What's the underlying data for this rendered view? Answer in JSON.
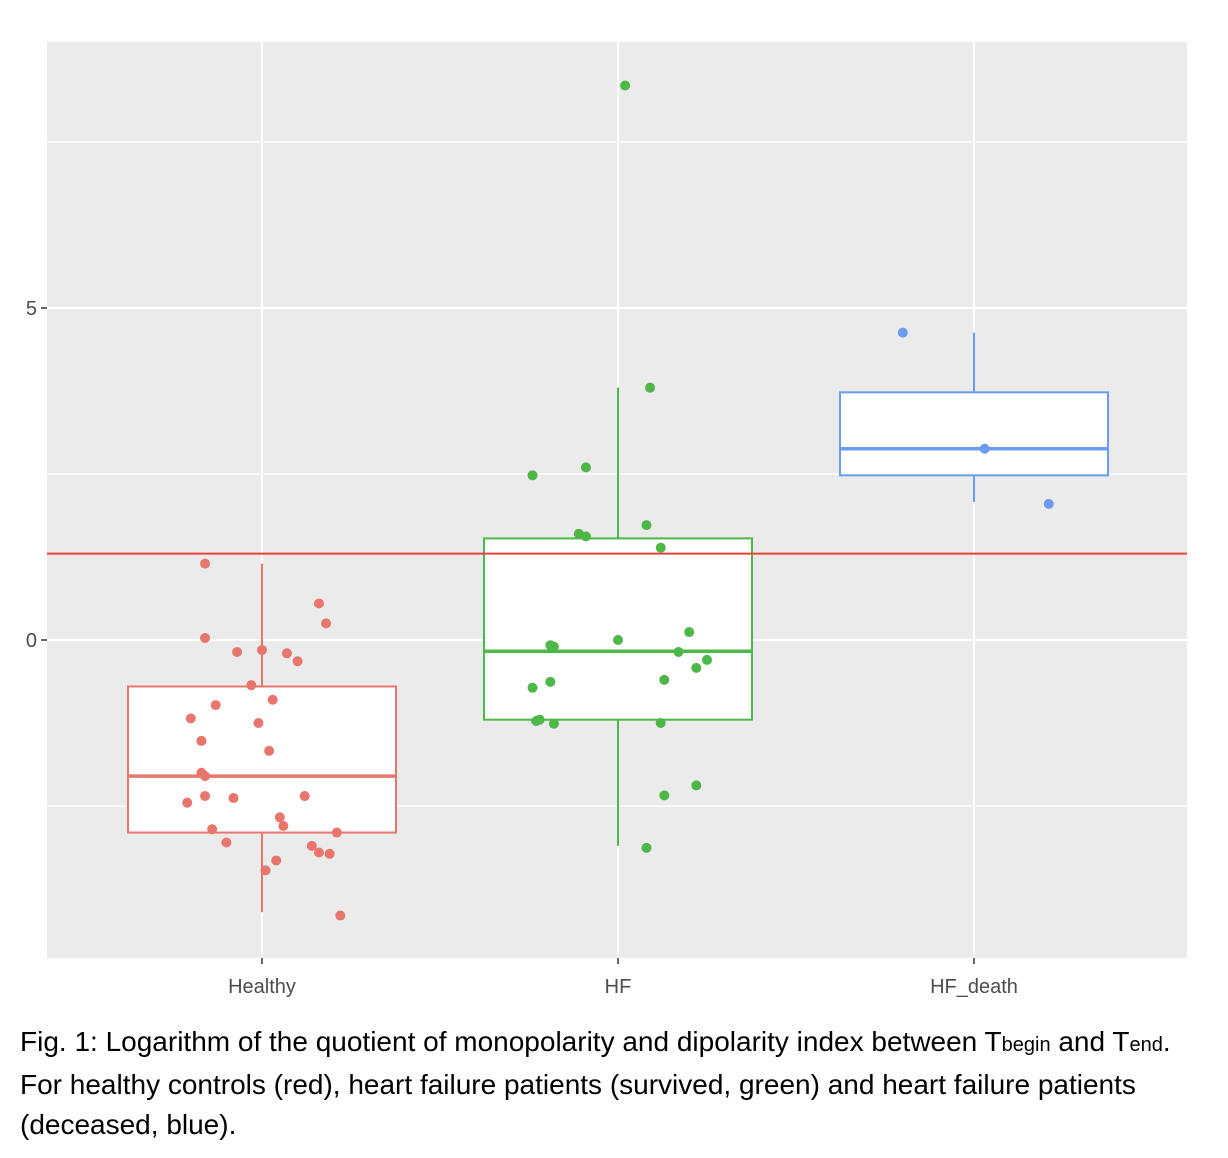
{
  "chart_data": {
    "type": "boxplot",
    "categories": [
      "Healthy",
      "HF",
      "HF_death"
    ],
    "y_ticks": [
      0,
      5
    ],
    "ylim": [
      -4.8,
      8.95
    ],
    "grid": true,
    "reference_line": {
      "y": 1.3,
      "color": "#E8423A"
    },
    "colors": {
      "Healthy": "#E8766D",
      "HF": "#4DB748",
      "HF_death": "#6C9BF2"
    },
    "boxes": [
      {
        "category": "Healthy",
        "whisker_low": -4.1,
        "q1": -2.9,
        "median": -2.05,
        "q3": -0.7,
        "whisker_high": 1.15
      },
      {
        "category": "HF",
        "whisker_low": -3.1,
        "q1": -1.2,
        "median": -0.17,
        "q3": 1.53,
        "whisker_high": 3.8
      },
      {
        "category": "HF_death",
        "whisker_low": 2.08,
        "q1": 2.48,
        "median": 2.88,
        "q3": 3.73,
        "whisker_high": 4.63
      }
    ],
    "points": [
      {
        "category": "Healthy",
        "offset": -0.16,
        "y": 1.15
      },
      {
        "category": "Healthy",
        "offset": 0.16,
        "y": 0.55
      },
      {
        "category": "Healthy",
        "offset": 0.18,
        "y": 0.25
      },
      {
        "category": "Healthy",
        "offset": -0.16,
        "y": 0.03
      },
      {
        "category": "Healthy",
        "offset": -0.07,
        "y": -0.18
      },
      {
        "category": "Healthy",
        "offset": 0.0,
        "y": -0.15
      },
      {
        "category": "Healthy",
        "offset": 0.07,
        "y": -0.2
      },
      {
        "category": "Healthy",
        "offset": 0.1,
        "y": -0.32
      },
      {
        "category": "Healthy",
        "offset": -0.03,
        "y": -0.68
      },
      {
        "category": "Healthy",
        "offset": 0.03,
        "y": -0.9
      },
      {
        "category": "Healthy",
        "offset": -0.13,
        "y": -0.98
      },
      {
        "category": "Healthy",
        "offset": -0.2,
        "y": -1.18
      },
      {
        "category": "Healthy",
        "offset": -0.01,
        "y": -1.25
      },
      {
        "category": "Healthy",
        "offset": -0.17,
        "y": -1.52
      },
      {
        "category": "Healthy",
        "offset": 0.02,
        "y": -1.67
      },
      {
        "category": "Healthy",
        "offset": -0.17,
        "y": -2.0
      },
      {
        "category": "Healthy",
        "offset": -0.16,
        "y": -2.05
      },
      {
        "category": "Healthy",
        "offset": -0.16,
        "y": -2.35
      },
      {
        "category": "Healthy",
        "offset": -0.08,
        "y": -2.38
      },
      {
        "category": "Healthy",
        "offset": 0.12,
        "y": -2.35
      },
      {
        "category": "Healthy",
        "offset": -0.21,
        "y": -2.45
      },
      {
        "category": "Healthy",
        "offset": 0.05,
        "y": -2.67
      },
      {
        "category": "Healthy",
        "offset": 0.06,
        "y": -2.8
      },
      {
        "category": "Healthy",
        "offset": -0.14,
        "y": -2.85
      },
      {
        "category": "Healthy",
        "offset": 0.21,
        "y": -2.9
      },
      {
        "category": "Healthy",
        "offset": -0.1,
        "y": -3.05
      },
      {
        "category": "Healthy",
        "offset": 0.14,
        "y": -3.1
      },
      {
        "category": "Healthy",
        "offset": 0.16,
        "y": -3.2
      },
      {
        "category": "Healthy",
        "offset": 0.19,
        "y": -3.22
      },
      {
        "category": "Healthy",
        "offset": 0.04,
        "y": -3.32
      },
      {
        "category": "Healthy",
        "offset": 0.01,
        "y": -3.47
      },
      {
        "category": "Healthy",
        "offset": 0.22,
        "y": -4.15
      },
      {
        "category": "HF",
        "offset": 0.02,
        "y": 8.35
      },
      {
        "category": "HF",
        "offset": 0.09,
        "y": 3.8
      },
      {
        "category": "HF",
        "offset": -0.09,
        "y": 2.6
      },
      {
        "category": "HF",
        "offset": -0.24,
        "y": 2.48
      },
      {
        "category": "HF",
        "offset": 0.08,
        "y": 1.73
      },
      {
        "category": "HF",
        "offset": -0.11,
        "y": 1.6
      },
      {
        "category": "HF",
        "offset": -0.09,
        "y": 1.56
      },
      {
        "category": "HF",
        "offset": 0.12,
        "y": 1.39
      },
      {
        "category": "HF",
        "offset": 0.2,
        "y": 0.12
      },
      {
        "category": "HF",
        "offset": 0.0,
        "y": 0.0
      },
      {
        "category": "HF",
        "offset": -0.19,
        "y": -0.08
      },
      {
        "category": "HF",
        "offset": -0.18,
        "y": -0.1
      },
      {
        "category": "HF",
        "offset": 0.17,
        "y": -0.18
      },
      {
        "category": "HF",
        "offset": 0.25,
        "y": -0.3
      },
      {
        "category": "HF",
        "offset": 0.22,
        "y": -0.42
      },
      {
        "category": "HF",
        "offset": 0.13,
        "y": -0.6
      },
      {
        "category": "HF",
        "offset": -0.19,
        "y": -0.63
      },
      {
        "category": "HF",
        "offset": -0.24,
        "y": -0.72
      },
      {
        "category": "HF",
        "offset": -0.23,
        "y": -1.22
      },
      {
        "category": "HF",
        "offset": -0.22,
        "y": -1.2
      },
      {
        "category": "HF",
        "offset": -0.18,
        "y": -1.26
      },
      {
        "category": "HF",
        "offset": 0.12,
        "y": -1.25
      },
      {
        "category": "HF",
        "offset": 0.22,
        "y": -2.19
      },
      {
        "category": "HF",
        "offset": 0.13,
        "y": -2.34
      },
      {
        "category": "HF",
        "offset": 0.08,
        "y": -3.13
      },
      {
        "category": "HF_death",
        "offset": -0.2,
        "y": 4.63
      },
      {
        "category": "HF_death",
        "offset": 0.03,
        "y": 2.88
      },
      {
        "category": "HF_death",
        "offset": 0.21,
        "y": 2.05
      }
    ]
  },
  "caption": {
    "part1": "Fig. 1: Logarithm of the quotient of monopolarity and dipolarity index between T",
    "sub1": "begin",
    "part2": " and T",
    "sub2": "end",
    "part3": ". For healthy controls (red), heart failure patients (survived, green) and heart failure patients (deceased, blue)."
  }
}
